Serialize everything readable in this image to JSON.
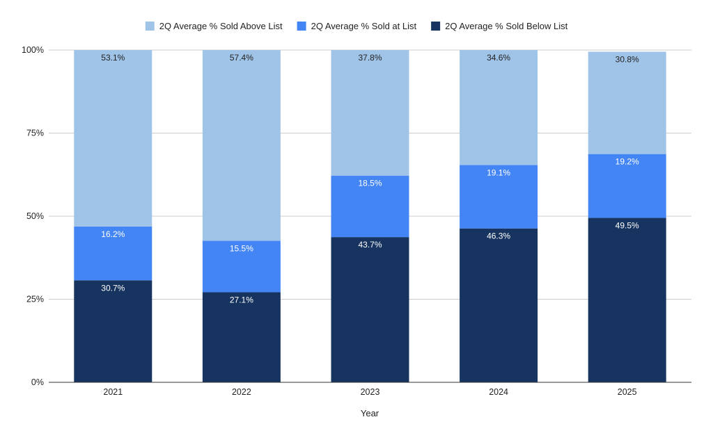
{
  "chart_data": {
    "type": "bar",
    "stacked": true,
    "categories": [
      "2021",
      "2022",
      "2023",
      "2024",
      "2025"
    ],
    "series": [
      {
        "name": "2Q Average % Sold Below List",
        "values": [
          30.7,
          27.1,
          43.7,
          46.3,
          49.5
        ],
        "labels": [
          "30.7%",
          "27.1%",
          "43.7%",
          "46.3%",
          "49.5%"
        ],
        "color": "#16345f",
        "label_color": "#ffffff"
      },
      {
        "name": "2Q Average % Sold at List",
        "values": [
          16.2,
          15.5,
          18.5,
          19.1,
          19.2
        ],
        "labels": [
          "16.2%",
          "15.5%",
          "18.5%",
          "19.1%",
          "19.2%"
        ],
        "color": "#4385f5",
        "label_color": "#ffffff"
      },
      {
        "name": "2Q Average % Sold Above List",
        "values": [
          53.1,
          57.4,
          37.8,
          34.6,
          30.8
        ],
        "labels": [
          "53.1%",
          "57.4%",
          "37.8%",
          "34.6%",
          "30.8%"
        ],
        "color": "#a0c4e8",
        "label_color": "#222222"
      }
    ],
    "legend": [
      "2Q Average % Sold Above List",
      "2Q Average % Sold at List",
      "2Q Average % Sold Below List"
    ],
    "legend_position": "top",
    "xlabel": "Year",
    "ylabel": "",
    "ylim": [
      0,
      100
    ],
    "yticks": [
      0,
      25,
      50,
      75,
      100
    ],
    "ytick_labels": [
      "0%",
      "25%",
      "50%",
      "75%",
      "100%"
    ],
    "grid": true
  }
}
